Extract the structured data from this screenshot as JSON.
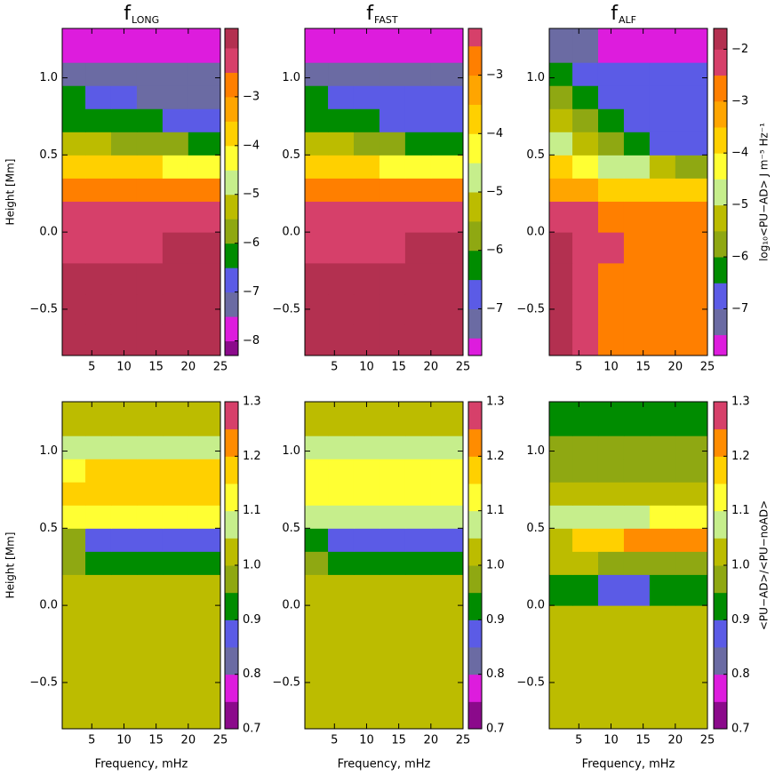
{
  "chart_data": [
    {
      "type": "heatmap",
      "title": "f",
      "title_sub": "LONG",
      "ylabel": "Height [Mm]",
      "xlim": [
        0.4,
        25
      ],
      "ylim": [
        -0.8,
        1.32
      ],
      "xticks": [
        5,
        10,
        15,
        20,
        25
      ],
      "yticks": [
        {
          "value": -0.5,
          "label": "−0.5"
        },
        {
          "value": 0,
          "label": "0.0"
        },
        {
          "value": 0.5,
          "label": "0.5"
        },
        {
          "value": 1,
          "label": "1.0"
        }
      ],
      "xbins": [
        0.4,
        4,
        8,
        12,
        16,
        20,
        25
      ],
      "ybins": [
        -0.8,
        -0.6,
        -0.4,
        -0.2,
        0,
        0.2,
        0.35,
        0.5,
        0.65,
        0.8,
        0.95,
        1.1,
        1.32
      ],
      "z": [
        [
          -1.8,
          -1.8,
          -1.8,
          -1.8,
          -1.9,
          -1.9
        ],
        [
          -1.8,
          -1.8,
          -1.8,
          -1.8,
          -1.9,
          -1.9
        ],
        [
          -1.9,
          -1.9,
          -1.9,
          -1.9,
          -1.9,
          -1.9
        ],
        [
          -2.1,
          -2.1,
          -2.1,
          -2.1,
          -2.0,
          -2.0
        ],
        [
          -2.3,
          -2.3,
          -2.3,
          -2.3,
          -2.3,
          -2.3
        ],
        [
          -2.8,
          -2.9,
          -2.9,
          -2.9,
          -2.9,
          -2.9
        ],
        [
          -3.8,
          -3.8,
          -3.9,
          -4.0,
          -4.1,
          -4.2
        ],
        [
          -5.2,
          -5.4,
          -5.6,
          -5.8,
          -6.0,
          -6.2
        ],
        [
          -6.2,
          -6.2,
          -6.3,
          -6.4,
          -6.6,
          -6.8
        ],
        [
          -6.3,
          -6.6,
          -7.0,
          -7.2,
          -7.2,
          -7.2
        ],
        [
          -7.3,
          -7.3,
          -7.4,
          -7.4,
          -7.4,
          -7.4
        ],
        [
          -7.8,
          -7.8,
          -7.9,
          -7.9,
          -7.9,
          -7.9
        ]
      ],
      "levels": [
        -8.5,
        -8,
        -7.5,
        -7,
        -6.5,
        -6,
        -5.5,
        -5,
        -4.5,
        -4,
        -3.5,
        -3,
        -2.5,
        -2,
        -1.5
      ],
      "colors": [
        "#8b0a8b",
        "#dd1cdd",
        "#6b6ba3",
        "#5b5be6",
        "#008c00",
        "#8fa812",
        "#bcbc00",
        "#c6ee8c",
        "#ffff33",
        "#ffd000",
        "#ffa500",
        "#ff7f00",
        "#d6406a",
        "#b33050"
      ],
      "clim": [
        -8.3,
        -1.6
      ],
      "cticks": [
        {
          "value": -8,
          "label": "−8"
        },
        {
          "value": -7,
          "label": "−7"
        },
        {
          "value": -6,
          "label": "−6"
        },
        {
          "value": -5,
          "label": "−5"
        },
        {
          "value": -4,
          "label": "−4"
        },
        {
          "value": -3,
          "label": "−3"
        }
      ]
    },
    {
      "type": "heatmap",
      "title": "f",
      "title_sub": "FAST",
      "xlim": [
        0.4,
        25
      ],
      "ylim": [
        -0.8,
        1.32
      ],
      "xticks": [
        5,
        10,
        15,
        20,
        25
      ],
      "yticks": [
        {
          "value": -0.5,
          "label": "−0.5"
        },
        {
          "value": 0,
          "label": "0.0"
        },
        {
          "value": 0.5,
          "label": "0.5"
        },
        {
          "value": 1,
          "label": "1.0"
        }
      ],
      "xbins": [
        0.4,
        4,
        8,
        12,
        16,
        20,
        25
      ],
      "ybins": [
        -0.8,
        -0.6,
        -0.4,
        -0.2,
        0,
        0.2,
        0.35,
        0.5,
        0.65,
        0.8,
        0.95,
        1.1,
        1.32
      ],
      "z": [
        [
          -1.8,
          -1.8,
          -1.8,
          -1.8,
          -1.9,
          -1.9
        ],
        [
          -1.8,
          -1.8,
          -1.8,
          -1.8,
          -1.9,
          -1.9
        ],
        [
          -1.9,
          -1.9,
          -1.9,
          -1.9,
          -1.9,
          -1.9
        ],
        [
          -2.1,
          -2.1,
          -2.1,
          -2.1,
          -2.0,
          -2.0
        ],
        [
          -2.3,
          -2.3,
          -2.3,
          -2.3,
          -2.3,
          -2.3
        ],
        [
          -2.8,
          -2.9,
          -2.9,
          -2.9,
          -2.9,
          -2.9
        ],
        [
          -3.8,
          -3.9,
          -4.0,
          -4.1,
          -4.2,
          -4.3
        ],
        [
          -5.3,
          -5.5,
          -5.7,
          -5.9,
          -6.1,
          -6.3
        ],
        [
          -6.2,
          -6.3,
          -6.4,
          -6.6,
          -6.8,
          -6.9
        ],
        [
          -6.4,
          -6.7,
          -6.9,
          -6.9,
          -6.9,
          -6.9
        ],
        [
          -7.2,
          -7.2,
          -7.2,
          -7.2,
          -7.2,
          -7.2
        ],
        [
          -7.8,
          -7.8,
          -7.8,
          -7.8,
          -7.8,
          -7.8
        ]
      ],
      "levels": [
        -8.5,
        -8,
        -7.5,
        -7,
        -6.5,
        -6,
        -5.5,
        -5,
        -4.5,
        -4,
        -3.5,
        -3,
        -2.5,
        -2,
        -1.5
      ],
      "colors": [
        "#8b0a8b",
        "#dd1cdd",
        "#6b6ba3",
        "#5b5be6",
        "#008c00",
        "#8fa812",
        "#bcbc00",
        "#c6ee8c",
        "#ffff33",
        "#ffd000",
        "#ffa500",
        "#ff7f00",
        "#d6406a",
        "#b33050"
      ],
      "clim": [
        -7.8,
        -2.2
      ],
      "cticks": [
        {
          "value": -7,
          "label": "−7"
        },
        {
          "value": -6,
          "label": "−6"
        },
        {
          "value": -5,
          "label": "−5"
        },
        {
          "value": -4,
          "label": "−4"
        },
        {
          "value": -3,
          "label": "−3"
        }
      ]
    },
    {
      "type": "heatmap",
      "title": "f",
      "title_sub": "ALF",
      "colorbar_label": "log₁₀<PU−AD> J m⁻⁵ Hz⁻¹",
      "xlim": [
        0.4,
        25
      ],
      "ylim": [
        -0.8,
        1.32
      ],
      "xticks": [
        5,
        10,
        15,
        20,
        25
      ],
      "yticks": [
        {
          "value": -0.5,
          "label": "−0.5"
        },
        {
          "value": 0,
          "label": "0.0"
        },
        {
          "value": 0.5,
          "label": "0.5"
        },
        {
          "value": 1,
          "label": "1.0"
        }
      ],
      "xbins": [
        0.4,
        4,
        8,
        12,
        16,
        20,
        25
      ],
      "ybins": [
        -0.8,
        -0.6,
        -0.4,
        -0.2,
        0,
        0.2,
        0.35,
        0.5,
        0.65,
        0.8,
        0.95,
        1.1,
        1.32
      ],
      "z": [
        [
          -1.8,
          -2.2,
          -2.6,
          -2.8,
          -2.8,
          -2.8
        ],
        [
          -1.8,
          -2.2,
          -2.7,
          -2.8,
          -2.8,
          -2.8
        ],
        [
          -1.9,
          -2.2,
          -2.6,
          -2.8,
          -2.8,
          -2.8
        ],
        [
          -2.0,
          -2.3,
          -2.4,
          -2.7,
          -2.8,
          -2.8
        ],
        [
          -2.3,
          -2.4,
          -2.6,
          -2.8,
          -2.9,
          -2.9
        ],
        [
          -3.2,
          -3.4,
          -3.6,
          -3.8,
          -3.9,
          -4.0
        ],
        [
          -4.0,
          -4.3,
          -4.6,
          -5.0,
          -5.3,
          -5.6
        ],
        [
          -4.8,
          -5.2,
          -5.6,
          -6.2,
          -6.6,
          -6.8
        ],
        [
          -5.3,
          -5.7,
          -6.2,
          -6.8,
          -6.9,
          -6.9
        ],
        [
          -5.8,
          -6.1,
          -6.6,
          -6.9,
          -6.9,
          -6.9
        ],
        [
          -6.2,
          -6.6,
          -6.9,
          -6.9,
          -6.9,
          -6.9
        ],
        [
          -7.2,
          -7.4,
          -7.6,
          -7.6,
          -7.6,
          -7.6
        ]
      ],
      "levels": [
        -8.5,
        -8,
        -7.5,
        -7,
        -6.5,
        -6,
        -5.5,
        -5,
        -4.5,
        -4,
        -3.5,
        -3,
        -2.5,
        -2,
        -1.5
      ],
      "colors": [
        "#8b0a8b",
        "#dd1cdd",
        "#6b6ba3",
        "#5b5be6",
        "#008c00",
        "#8fa812",
        "#bcbc00",
        "#c6ee8c",
        "#ffff33",
        "#ffd000",
        "#ffa500",
        "#ff7f00",
        "#d6406a",
        "#b33050"
      ],
      "clim": [
        -7.9,
        -1.6
      ],
      "cticks": [
        {
          "value": -7,
          "label": "−7"
        },
        {
          "value": -6,
          "label": "−6"
        },
        {
          "value": -5,
          "label": "−5"
        },
        {
          "value": -4,
          "label": "−4"
        },
        {
          "value": -3,
          "label": "−3"
        },
        {
          "value": -2,
          "label": "−2"
        }
      ]
    },
    {
      "type": "heatmap",
      "xlabel": "Frequency, mHz",
      "ylabel": "Height [Mm]",
      "xlim": [
        0.4,
        25
      ],
      "ylim": [
        -0.8,
        1.32
      ],
      "xticks": [
        5,
        10,
        15,
        20,
        25
      ],
      "yticks": [
        {
          "value": -0.5,
          "label": "−0.5"
        },
        {
          "value": 0,
          "label": "0.0"
        },
        {
          "value": 0.5,
          "label": "0.5"
        },
        {
          "value": 1,
          "label": "1.0"
        }
      ],
      "xbins": [
        0.4,
        4,
        8,
        12,
        16,
        20,
        25
      ],
      "ybins": [
        -0.8,
        -0.6,
        -0.4,
        -0.2,
        0,
        0.2,
        0.35,
        0.5,
        0.65,
        0.8,
        0.95,
        1.1,
        1.32
      ],
      "z": [
        [
          1.02,
          1.02,
          1.02,
          1.02,
          1.02,
          1.02
        ],
        [
          1.02,
          1.02,
          1.02,
          1.02,
          1.02,
          1.02
        ],
        [
          1.02,
          1.02,
          1.02,
          1.02,
          1.02,
          1.02
        ],
        [
          1.02,
          1.02,
          1.02,
          1.02,
          1.02,
          1.02
        ],
        [
          1.02,
          1.02,
          1.02,
          1.02,
          1.02,
          1.02
        ],
        [
          0.97,
          0.92,
          0.92,
          0.92,
          0.92,
          0.92
        ],
        [
          0.97,
          0.87,
          0.87,
          0.87,
          0.87,
          0.87
        ],
        [
          1.12,
          1.12,
          1.12,
          1.12,
          1.12,
          1.12
        ],
        [
          1.16,
          1.17,
          1.17,
          1.17,
          1.17,
          1.17
        ],
        [
          1.14,
          1.16,
          1.16,
          1.17,
          1.18,
          1.18
        ],
        [
          1.07,
          1.08,
          1.08,
          1.08,
          1.08,
          1.08
        ],
        [
          1.01,
          1.03,
          1.03,
          1.03,
          1.03,
          1.03
        ]
      ],
      "levels": [
        0.7,
        0.75,
        0.8,
        0.85,
        0.9,
        0.95,
        1.0,
        1.05,
        1.1,
        1.15,
        1.2,
        1.25,
        1.3
      ],
      "colors": [
        "#8b0a8b",
        "#dd1cdd",
        "#6b6ba3",
        "#5b5be6",
        "#008c00",
        "#8fa812",
        "#bcbc00",
        "#c6ee8c",
        "#ffff33",
        "#ffd000",
        "#ff8c00",
        "#d6406a"
      ],
      "clim": [
        0.7,
        1.3
      ],
      "cticks": [
        0.7,
        0.8,
        0.9,
        {
          "value": 1,
          "label": "1.0"
        },
        1.1,
        1.2,
        1.3
      ]
    },
    {
      "type": "heatmap",
      "xlabel": "Frequency, mHz",
      "xlim": [
        0.4,
        25
      ],
      "ylim": [
        -0.8,
        1.32
      ],
      "xticks": [
        5,
        10,
        15,
        20,
        25
      ],
      "yticks": [
        {
          "value": -0.5,
          "label": "−0.5"
        },
        {
          "value": 0,
          "label": "0.0"
        },
        {
          "value": 0.5,
          "label": "0.5"
        },
        {
          "value": 1,
          "label": "1.0"
        }
      ],
      "xbins": [
        0.4,
        4,
        8,
        12,
        16,
        20,
        25
      ],
      "ybins": [
        -0.8,
        -0.6,
        -0.4,
        -0.2,
        0,
        0.2,
        0.35,
        0.5,
        0.65,
        0.8,
        0.95,
        1.1,
        1.32
      ],
      "z": [
        [
          1.02,
          1.02,
          1.02,
          1.02,
          1.02,
          1.02
        ],
        [
          1.02,
          1.02,
          1.02,
          1.02,
          1.02,
          1.02
        ],
        [
          1.02,
          1.02,
          1.02,
          1.02,
          1.02,
          1.02
        ],
        [
          1.02,
          1.02,
          1.02,
          1.02,
          1.02,
          1.02
        ],
        [
          1.02,
          1.02,
          1.02,
          1.02,
          1.02,
          1.02
        ],
        [
          0.97,
          0.93,
          0.93,
          0.93,
          0.93,
          0.93
        ],
        [
          0.93,
          0.88,
          0.88,
          0.88,
          0.88,
          0.88
        ],
        [
          1.08,
          1.08,
          1.08,
          1.08,
          1.08,
          1.08
        ],
        [
          1.12,
          1.13,
          1.13,
          1.13,
          1.13,
          1.13
        ],
        [
          1.11,
          1.12,
          1.12,
          1.12,
          1.12,
          1.12
        ],
        [
          1.06,
          1.07,
          1.07,
          1.07,
          1.07,
          1.07
        ],
        [
          1.03,
          1.03,
          1.03,
          1.03,
          1.03,
          1.03
        ]
      ],
      "levels": [
        0.7,
        0.75,
        0.8,
        0.85,
        0.9,
        0.95,
        1.0,
        1.05,
        1.1,
        1.15,
        1.2,
        1.25,
        1.3
      ],
      "colors": [
        "#8b0a8b",
        "#dd1cdd",
        "#6b6ba3",
        "#5b5be6",
        "#008c00",
        "#8fa812",
        "#bcbc00",
        "#c6ee8c",
        "#ffff33",
        "#ffd000",
        "#ff8c00",
        "#d6406a"
      ],
      "clim": [
        0.7,
        1.3
      ],
      "cticks": [
        0.7,
        0.8,
        0.9,
        {
          "value": 1,
          "label": "1.0"
        },
        1.1,
        1.2,
        1.3
      ]
    },
    {
      "type": "heatmap",
      "xlabel": "Frequency, mHz",
      "colorbar_label": "<PU−AD>/<PU−noAD>",
      "xlim": [
        0.4,
        25
      ],
      "ylim": [
        -0.8,
        1.32
      ],
      "xticks": [
        5,
        10,
        15,
        20,
        25
      ],
      "yticks": [
        {
          "value": -0.5,
          "label": "−0.5"
        },
        {
          "value": 0,
          "label": "0.0"
        },
        {
          "value": 0.5,
          "label": "0.5"
        },
        {
          "value": 1,
          "label": "1.0"
        }
      ],
      "xbins": [
        0.4,
        4,
        8,
        12,
        16,
        20,
        25
      ],
      "ybins": [
        -0.8,
        -0.6,
        -0.4,
        -0.2,
        0,
        0.2,
        0.35,
        0.5,
        0.65,
        0.8,
        0.95,
        1.1,
        1.32
      ],
      "z": [
        [
          1.01,
          1.01,
          1.01,
          1.01,
          1.01,
          1.01
        ],
        [
          1.01,
          1.01,
          1.01,
          1.01,
          1.01,
          1.01
        ],
        [
          1.01,
          1.01,
          1.01,
          1.01,
          1.01,
          1.01
        ],
        [
          1.01,
          1.01,
          1.01,
          1.01,
          1.01,
          1.01
        ],
        [
          0.93,
          0.93,
          0.88,
          0.88,
          0.9,
          0.93
        ],
        [
          1.02,
          1.0,
          0.96,
          0.95,
          0.95,
          0.96
        ],
        [
          1.03,
          1.17,
          1.17,
          1.2,
          1.2,
          1.2
        ],
        [
          1.06,
          1.07,
          1.07,
          1.08,
          1.1,
          1.1
        ],
        [
          1.0,
          1.0,
          1.0,
          1.02,
          1.02,
          1.02
        ],
        [
          0.97,
          0.97,
          0.97,
          0.97,
          0.97,
          0.97
        ],
        [
          0.95,
          0.97,
          0.97,
          0.97,
          0.97,
          0.97
        ],
        [
          0.93,
          0.93,
          0.93,
          0.93,
          0.93,
          0.93
        ]
      ],
      "levels": [
        0.7,
        0.75,
        0.8,
        0.85,
        0.9,
        0.95,
        1.0,
        1.05,
        1.1,
        1.15,
        1.2,
        1.25,
        1.3
      ],
      "colors": [
        "#8b0a8b",
        "#dd1cdd",
        "#6b6ba3",
        "#5b5be6",
        "#008c00",
        "#8fa812",
        "#bcbc00",
        "#c6ee8c",
        "#ffff33",
        "#ffd000",
        "#ff8c00",
        "#d6406a"
      ],
      "clim": [
        0.7,
        1.3
      ],
      "cticks": [
        0.7,
        0.8,
        0.9,
        {
          "value": 1,
          "label": "1.0"
        },
        1.1,
        1.2,
        1.3
      ]
    }
  ]
}
